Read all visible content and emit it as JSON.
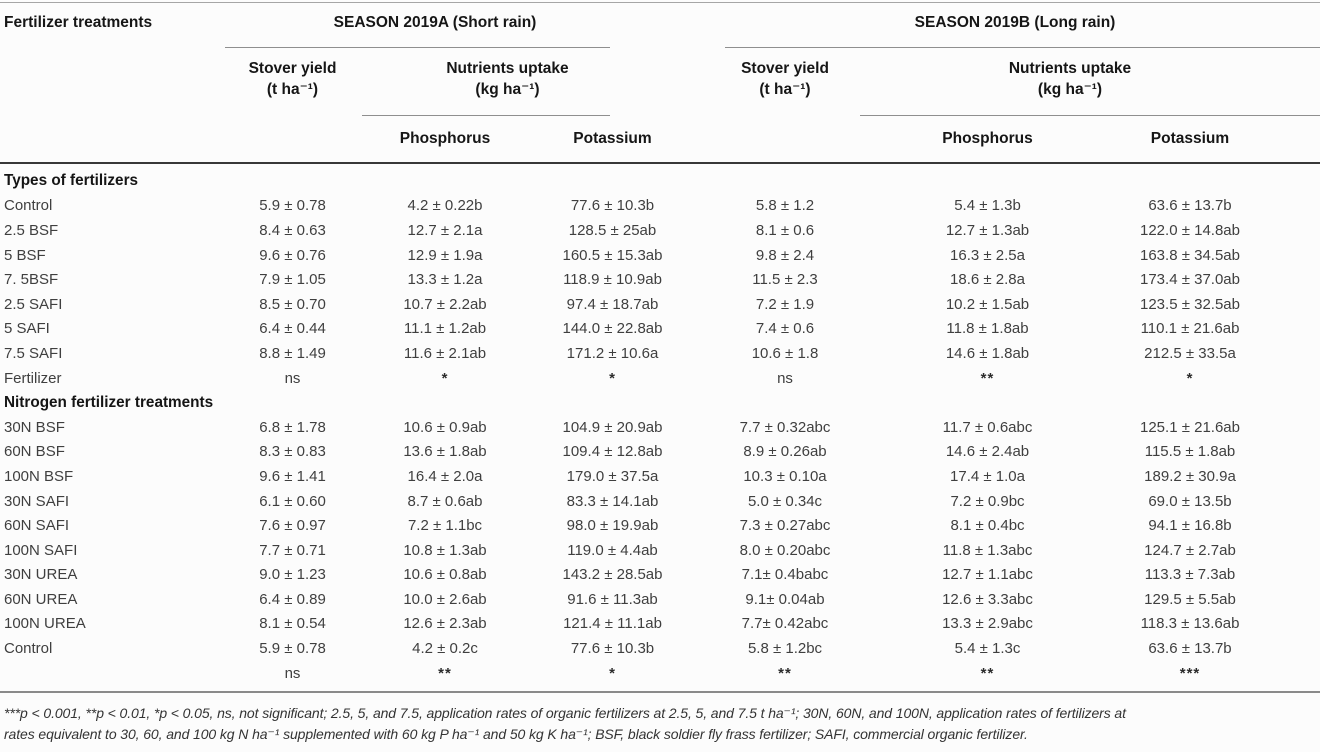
{
  "table": {
    "corner_header": "Fertilizer treatments",
    "seasons": [
      {
        "title": "SEASON 2019A (Short rain)",
        "stover_label": "Stover yield",
        "stover_unit": "(t ha⁻¹)",
        "uptake_label": "Nutrients uptake",
        "uptake_unit": "(kg ha⁻¹)",
        "phosphorus_label": "Phosphorus",
        "potassium_label": "Potassium"
      },
      {
        "title": "SEASON 2019B (Long rain)",
        "stover_label": "Stover yield",
        "stover_unit": "(t ha⁻¹)",
        "uptake_label": "Nutrients uptake",
        "uptake_unit": "(kg ha⁻¹)",
        "phosphorus_label": "Phosphorus",
        "potassium_label": "Potassium"
      }
    ],
    "sections": [
      {
        "title": "Types of fertilizers",
        "rows": [
          {
            "label": "Control",
            "values": [
              "5.9 ± 0.78",
              "4.2 ± 0.22b",
              "77.6 ± 10.3b",
              "5.8 ± 1.2",
              "5.4 ± 1.3b",
              "63.6 ± 13.7b"
            ]
          },
          {
            "label": "2.5 BSF",
            "values": [
              "8.4 ± 0.63",
              "12.7 ± 2.1a",
              "128.5 ± 25ab",
              "8.1 ± 0.6",
              "12.7 ± 1.3ab",
              "122.0 ± 14.8ab"
            ]
          },
          {
            "label": "5 BSF",
            "values": [
              "9.6 ± 0.76",
              "12.9 ± 1.9a",
              "160.5 ± 15.3ab",
              "9.8 ± 2.4",
              "16.3 ± 2.5a",
              "163.8 ± 34.5ab"
            ]
          },
          {
            "label": "7. 5BSF",
            "values": [
              "7.9 ± 1.05",
              "13.3 ± 1.2a",
              "118.9 ± 10.9ab",
              "11.5 ± 2.3",
              "18.6 ± 2.8a",
              "173.4 ± 37.0ab"
            ]
          },
          {
            "label": "2.5 SAFI",
            "values": [
              "8.5 ± 0.70",
              "10.7 ± 2.2ab",
              "97.4 ± 18.7ab",
              "7.2 ± 1.9",
              "10.2 ± 1.5ab",
              "123.5 ± 32.5ab"
            ]
          },
          {
            "label": "5 SAFI",
            "values": [
              "6.4 ± 0.44",
              "11.1 ± 1.2ab",
              "144.0 ± 22.8ab",
              "7.4 ± 0.6",
              "11.8 ± 1.8ab",
              "110.1 ± 21.6ab"
            ]
          },
          {
            "label": "7.5 SAFI",
            "values": [
              "8.8 ± 1.49",
              "11.6 ± 2.1ab",
              "171.2 ± 10.6a",
              "10.6 ± 1.8",
              "14.6 ± 1.8ab",
              "212.5 ± 33.5a"
            ]
          },
          {
            "label": "Fertilizer",
            "values": [
              "ns",
              "*",
              "*",
              "ns",
              "**",
              "*"
            ]
          }
        ]
      },
      {
        "title": "Nitrogen fertilizer treatments",
        "rows": [
          {
            "label": "30N BSF",
            "values": [
              "6.8 ± 1.78",
              "10.6 ± 0.9ab",
              "104.9 ± 20.9ab",
              "7.7 ± 0.32abc",
              "11.7 ± 0.6abc",
              "125.1 ± 21.6ab"
            ]
          },
          {
            "label": "60N BSF",
            "values": [
              "8.3 ± 0.83",
              "13.6 ± 1.8ab",
              "109.4 ± 12.8ab",
              "8.9 ± 0.26ab",
              "14.6 ± 2.4ab",
              "115.5 ± 1.8ab"
            ]
          },
          {
            "label": "100N BSF",
            "values": [
              "9.6 ± 1.41",
              "16.4 ± 2.0a",
              "179.0 ± 37.5a",
              "10.3 ± 0.10a",
              "17.4 ± 1.0a",
              "189.2 ± 30.9a"
            ]
          },
          {
            "label": "30N SAFI",
            "values": [
              "6.1 ± 0.60",
              "8.7 ± 0.6ab",
              "83.3 ± 14.1ab",
              "5.0 ± 0.34c",
              "7.2 ± 0.9bc",
              "69.0 ± 13.5b"
            ]
          },
          {
            "label": "60N SAFI",
            "values": [
              "7.6 ± 0.97",
              "7.2 ± 1.1bc",
              "98.0 ± 19.9ab",
              "7.3 ± 0.27abc",
              "8.1 ± 0.4bc",
              "94.1 ± 16.8b"
            ]
          },
          {
            "label": "100N SAFI",
            "values": [
              "7.7 ± 0.71",
              "10.8 ± 1.3ab",
              "119.0 ± 4.4ab",
              "8.0 ± 0.20abc",
              "11.8 ± 1.3abc",
              "124.7 ± 2.7ab"
            ]
          },
          {
            "label": "30N UREA",
            "values": [
              "9.0 ± 1.23",
              "10.6 ± 0.8ab",
              "143.2 ± 28.5ab",
              "7.1± 0.4babc",
              "12.7 ± 1.1abc",
              "113.3 ± 7.3ab"
            ]
          },
          {
            "label": "60N UREA",
            "values": [
              "6.4 ± 0.89",
              "10.0 ± 2.6ab",
              "91.6 ± 11.3ab",
              "9.1± 0.04ab",
              "12.6 ± 3.3abc",
              "129.5 ± 5.5ab"
            ]
          },
          {
            "label": "100N UREA",
            "values": [
              "8.1 ± 0.54",
              "12.6 ± 2.3ab",
              "121.4 ± 11.1ab",
              "7.7± 0.42abc",
              "13.3 ± 2.9abc",
              "118.3 ± 13.6ab"
            ]
          },
          {
            "label": "Control",
            "values": [
              "5.9 ± 0.78",
              "4.2 ± 0.2c",
              "77.6 ± 10.3b",
              "5.8 ± 1.2bc",
              "5.4 ± 1.3c",
              "63.6 ± 13.7b"
            ]
          },
          {
            "label": "",
            "values": [
              "ns",
              "**",
              "*",
              "**",
              "**",
              "***"
            ]
          }
        ]
      }
    ],
    "footnote_lines": [
      "***p < 0.001, **p < 0.01, *p < 0.05, ns, not significant; 2.5, 5, and 7.5, application rates of organic fertilizers at 2.5, 5, and 7.5 t ha⁻¹; 30N, 60N, and 100N, application rates of fertilizers at",
      "rates equivalent to 30, 60, and 100 kg N ha⁻¹ supplemented with 60 kg P ha⁻¹ and 50 kg K ha⁻¹; BSF, black soldier fly frass fertilizer; SAFI, commercial organic fertilizer."
    ],
    "colors": {
      "heading_text": "#161616",
      "body_text": "#3f3f3f",
      "rule_dark": "#383838",
      "rule_light": "#8f8f8f"
    }
  }
}
